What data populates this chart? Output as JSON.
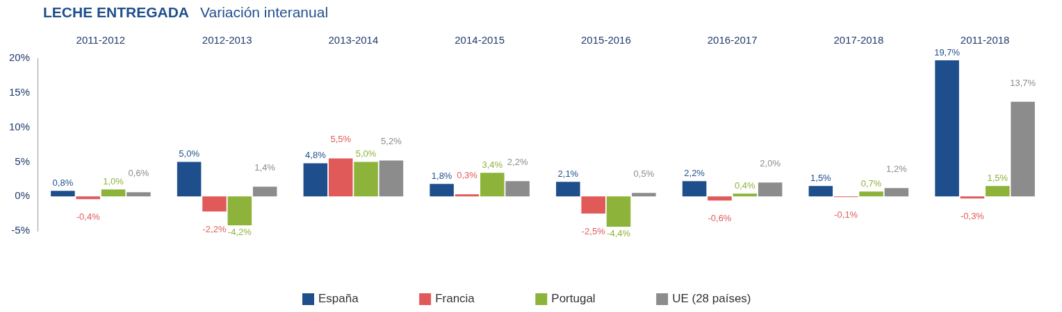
{
  "chart_data": {
    "type": "bar",
    "title": "LECHE ENTREGADA",
    "subtitle": "Variación interanual",
    "categories": [
      "2011-2012",
      "2012-2013",
      "2013-2014",
      "2014-2015",
      "2015-2016",
      "2016-2017",
      "2017-2018",
      "2011-2018"
    ],
    "series": [
      {
        "name": "España",
        "color": "#1f4e8c",
        "values": [
          0.8,
          5.0,
          4.8,
          1.8,
          2.1,
          2.2,
          1.5,
          19.7
        ],
        "value_labels": [
          "0,8%",
          "5,0%",
          "4,8%",
          "1,8%",
          "2,1%",
          "2,2%",
          "1,5%",
          "19,7%"
        ]
      },
      {
        "name": "Francia",
        "color": "#e05a5a",
        "values": [
          -0.4,
          -2.2,
          5.5,
          0.3,
          -2.5,
          -0.6,
          -0.1,
          -0.3
        ],
        "value_labels": [
          "-0,4%",
          "-2,2%",
          "5,5%",
          "0,3%",
          "-2,5%",
          "-0,6%",
          "-0,1%",
          "-0,3%"
        ]
      },
      {
        "name": "Portugal",
        "color": "#8db33a",
        "values": [
          1.0,
          -4.2,
          5.0,
          3.4,
          -4.4,
          0.4,
          0.7,
          1.5
        ],
        "value_labels": [
          "1,0%",
          "-4,2%",
          "5,0%",
          "3,4%",
          "-4,4%",
          "0,4%",
          "0,7%",
          "1,5%"
        ]
      },
      {
        "name": "UE (28 países)",
        "color": "#8c8c8c",
        "values": [
          0.6,
          1.4,
          5.2,
          2.2,
          0.5,
          2.0,
          1.2,
          13.7
        ],
        "value_labels": [
          "0,6%",
          "1,4%",
          "5,2%",
          "2,2%",
          "0,5%",
          "2,0%",
          "1,2%",
          "13,7%"
        ]
      }
    ],
    "ylim": [
      -5,
      20
    ],
    "yticks": [
      {
        "value": -5,
        "label": "-5%"
      },
      {
        "value": 0,
        "label": "0%"
      },
      {
        "value": 5,
        "label": "5%"
      },
      {
        "value": 10,
        "label": "10%"
      },
      {
        "value": 15,
        "label": "15%"
      },
      {
        "value": 20,
        "label": "20%"
      }
    ],
    "grid": false,
    "legend": "bottom"
  }
}
